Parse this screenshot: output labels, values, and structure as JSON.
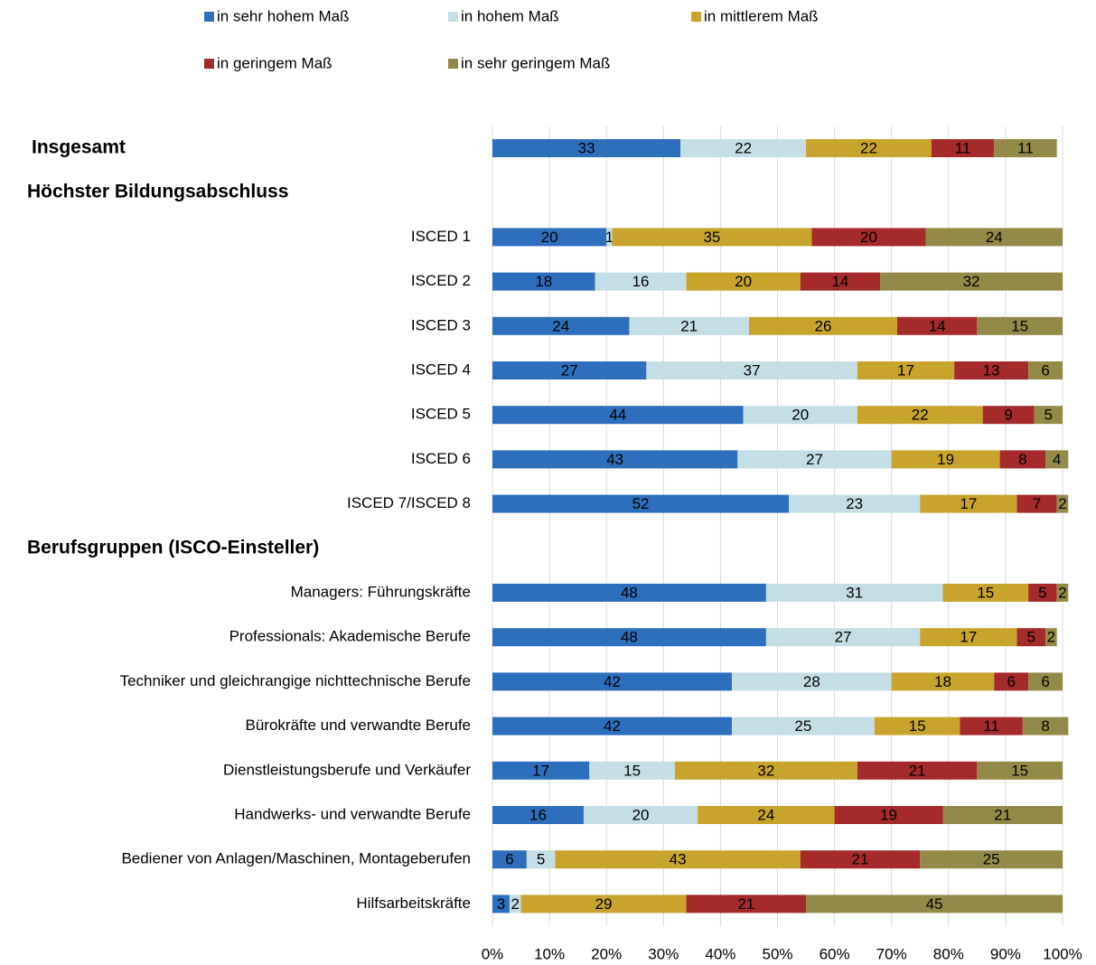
{
  "chart_data": {
    "type": "stacked_bar_horizontal",
    "categories": [
      "Insgesamt",
      "Höchster Bildungsabschluss",
      "ISCED 1",
      "ISCED 2",
      "ISCED 3",
      "ISCED 4",
      "ISCED 5",
      "ISCED 6",
      "ISCED 7/ISCED 8",
      "Berufsgruppen (ISCO-Einsteller)",
      "Managers: Führungskräfte",
      "Professionals: Akademische Berufe",
      "Techniker und gleichrangige nichttechnische Berufe",
      "Bürokräfte und verwandte Berufe",
      "Dienstleistungsberufe und Verkäufer",
      "Handwerks- und verwandte Berufe",
      "Bediener von Anlagen/Maschinen, Montageberufen",
      "Hilfsarbeitskräfte"
    ],
    "header_rows": [
      0,
      1,
      9
    ],
    "series": [
      {
        "name": "in sehr hohem Maß",
        "color": "#2e6fbd",
        "label_color": "#ffffff",
        "values": [
          33,
          null,
          20,
          18,
          24,
          27,
          44,
          43,
          52,
          null,
          48,
          48,
          42,
          42,
          17,
          16,
          6,
          3
        ]
      },
      {
        "name": "in hohem Maß",
        "color": "#c3dfe5",
        "label_color": "#404040",
        "values": [
          22,
          null,
          1,
          16,
          21,
          37,
          20,
          27,
          23,
          null,
          31,
          27,
          28,
          25,
          15,
          20,
          5,
          2
        ]
      },
      {
        "name": "in mittlerem Maß",
        "color": "#c9a42c",
        "label_color": "#404040",
        "values": [
          22,
          null,
          35,
          20,
          26,
          17,
          22,
          19,
          17,
          null,
          15,
          17,
          18,
          15,
          32,
          24,
          43,
          29
        ]
      },
      {
        "name": "in geringem Maß",
        "color": "#a52a2a",
        "label_color": "#ffffff",
        "values": [
          11,
          null,
          20,
          14,
          14,
          13,
          9,
          8,
          7,
          null,
          5,
          5,
          6,
          11,
          21,
          19,
          21,
          21
        ]
      },
      {
        "name": "in sehr geringem Maß",
        "color": "#948a48",
        "label_color": "#ffffff",
        "values": [
          11,
          null,
          24,
          32,
          15,
          6,
          5,
          4,
          2,
          null,
          2,
          2,
          6,
          8,
          15,
          21,
          25,
          45
        ]
      }
    ],
    "xlim": [
      0,
      100
    ],
    "xticks": [
      {
        "value": 0,
        "label": "0%"
      },
      {
        "value": 10,
        "label": "10%"
      },
      {
        "value": 20,
        "label": "20%"
      },
      {
        "value": 30,
        "label": "30%"
      },
      {
        "value": 40,
        "label": "40%"
      },
      {
        "value": 50,
        "label": "50%"
      },
      {
        "value": 60,
        "label": "60%"
      },
      {
        "value": 70,
        "label": "70%"
      },
      {
        "value": 80,
        "label": "80%"
      },
      {
        "value": 90,
        "label": "90%"
      },
      {
        "value": 100,
        "label": "100%"
      }
    ],
    "grid": true,
    "legend": "top"
  }
}
